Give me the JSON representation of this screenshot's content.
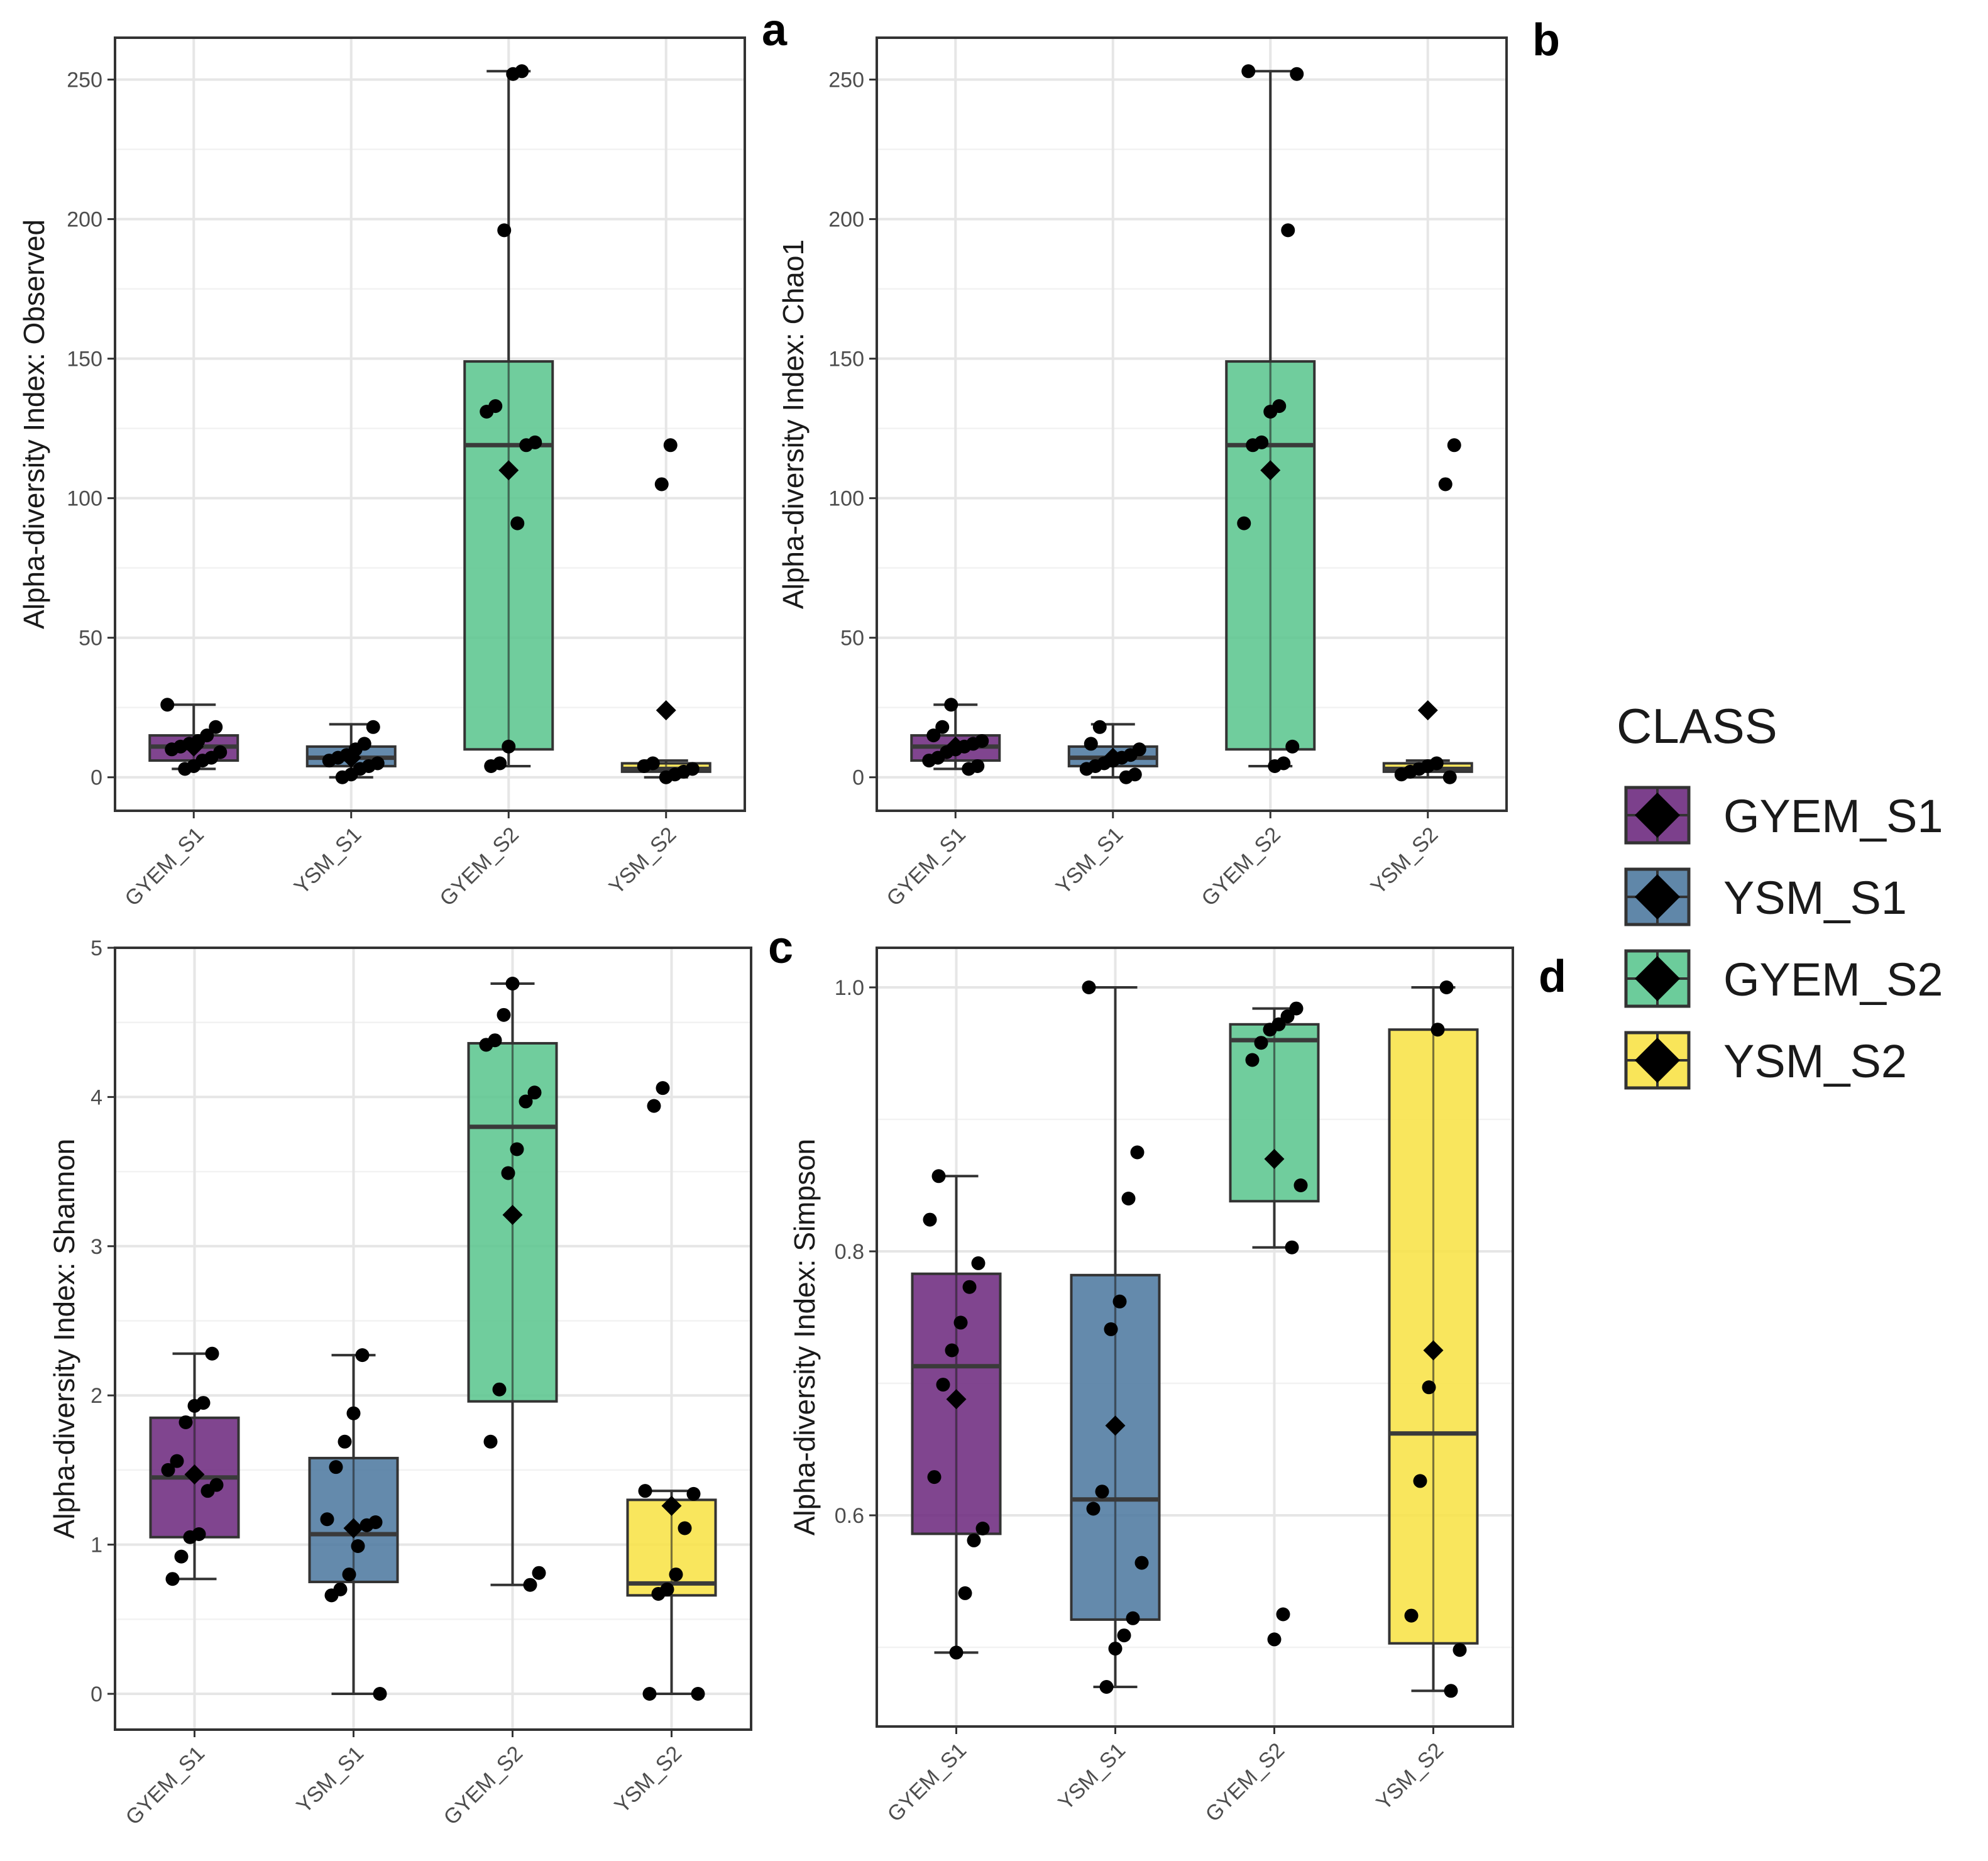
{
  "categories": [
    "GYEM_S1",
    "YSM_S1",
    "GYEM_S2",
    "YSM_S2"
  ],
  "colors": [
    "#6e2b80",
    "#4f7aa0",
    "#5cc690",
    "#f8e247"
  ],
  "legend": {
    "title": "CLASS",
    "items": [
      "GYEM_S1",
      "YSM_S1",
      "GYEM_S2",
      "YSM_S2"
    ]
  },
  "chart_data": [
    {
      "type": "box",
      "letter": "a",
      "ylabel": "Alpha-diversity Index: Observed",
      "ylim": [
        -12,
        265
      ],
      "yticks": [
        0,
        50,
        100,
        150,
        200,
        250
      ],
      "boxes": [
        {
          "q1": 6,
          "median": 11,
          "q3": 15,
          "lo": 3,
          "hi": 26,
          "mean": 11,
          "points": [
            26,
            18,
            15,
            13,
            12,
            11,
            10,
            9,
            7,
            6,
            4,
            3
          ]
        },
        {
          "q1": 4,
          "median": 7,
          "q3": 11,
          "lo": 0,
          "hi": 19,
          "mean": 7,
          "points": [
            18,
            12,
            10,
            8,
            7,
            6,
            5,
            4,
            3,
            1,
            0
          ]
        },
        {
          "q1": 10,
          "median": 119,
          "q3": 149,
          "lo": 4,
          "hi": 253,
          "mean": 110,
          "points": [
            253,
            252,
            196,
            133,
            131,
            120,
            119,
            91,
            11,
            5,
            4
          ]
        },
        {
          "q1": 2,
          "median": 3,
          "q3": 5,
          "lo": 0,
          "hi": 6,
          "mean": 24,
          "points": [
            119,
            105,
            5,
            4,
            3,
            2,
            1,
            0
          ]
        }
      ]
    },
    {
      "type": "box",
      "letter": "b",
      "ylabel": "Alpha-diversity Index: Chao1",
      "ylim": [
        -12,
        265
      ],
      "yticks": [
        0,
        50,
        100,
        150,
        200,
        250
      ],
      "boxes": [
        {
          "q1": 6,
          "median": 11,
          "q3": 15,
          "lo": 3,
          "hi": 26,
          "mean": 11,
          "points": [
            26,
            18,
            15,
            13,
            12,
            11,
            10,
            9,
            7,
            6,
            4,
            3
          ]
        },
        {
          "q1": 4,
          "median": 7,
          "q3": 11,
          "lo": 0,
          "hi": 19,
          "mean": 7,
          "points": [
            18,
            12,
            10,
            8,
            7,
            6,
            5,
            4,
            3,
            1,
            0
          ]
        },
        {
          "q1": 10,
          "median": 119,
          "q3": 149,
          "lo": 4,
          "hi": 253,
          "mean": 110,
          "points": [
            253,
            252,
            196,
            133,
            131,
            120,
            119,
            91,
            11,
            5,
            4
          ]
        },
        {
          "q1": 2,
          "median": 3,
          "q3": 5,
          "lo": 0,
          "hi": 6,
          "mean": 24,
          "points": [
            119,
            105,
            5,
            4,
            3,
            2,
            1,
            0
          ]
        }
      ]
    },
    {
      "type": "box",
      "letter": "c",
      "ylabel": "Alpha-diversity Index: Shannon",
      "ylim": [
        -0.24,
        5.0
      ],
      "yticks": [
        0,
        1,
        2,
        3,
        4,
        5
      ],
      "boxes": [
        {
          "q1": 1.05,
          "median": 1.45,
          "q3": 1.85,
          "lo": 0.77,
          "hi": 2.28,
          "mean": 1.47,
          "points": [
            2.28,
            1.95,
            1.93,
            1.82,
            1.56,
            1.5,
            1.4,
            1.36,
            1.07,
            1.05,
            0.92,
            0.77
          ]
        },
        {
          "q1": 0.75,
          "median": 1.07,
          "q3": 1.58,
          "lo": 0.0,
          "hi": 2.27,
          "mean": 1.11,
          "points": [
            2.27,
            1.88,
            1.69,
            1.52,
            1.17,
            1.15,
            1.13,
            0.99,
            0.8,
            0.7,
            0.66,
            0.0
          ]
        },
        {
          "q1": 1.96,
          "median": 3.8,
          "q3": 4.36,
          "lo": 0.73,
          "hi": 4.76,
          "mean": 3.21,
          "points": [
            4.76,
            4.55,
            4.38,
            4.35,
            4.03,
            3.97,
            3.65,
            3.49,
            2.04,
            1.69,
            0.81,
            0.73
          ]
        },
        {
          "q1": 0.66,
          "median": 0.74,
          "q3": 1.3,
          "lo": 0.0,
          "hi": 1.36,
          "mean": 1.26,
          "points": [
            4.06,
            3.94,
            1.36,
            1.34,
            1.11,
            0.8,
            0.7,
            0.67,
            0.0,
            0.0
          ]
        }
      ]
    },
    {
      "type": "box",
      "letter": "d",
      "ylabel": "Alpha-diversity Index: Simpson",
      "ylim": [
        0.44,
        1.03
      ],
      "yticks": [
        0.6,
        0.8,
        1.0
      ],
      "ytick_labels": [
        "0.6",
        "0.8",
        "1.0"
      ],
      "boxes": [
        {
          "q1": 0.586,
          "median": 0.713,
          "q3": 0.783,
          "lo": 0.496,
          "hi": 0.857,
          "mean": 0.688,
          "points": [
            0.857,
            0.824,
            0.791,
            0.773,
            0.746,
            0.725,
            0.699,
            0.629,
            0.59,
            0.581,
            0.541,
            0.496
          ]
        },
        {
          "q1": 0.521,
          "median": 0.612,
          "q3": 0.782,
          "lo": 0.47,
          "hi": 1.0,
          "mean": 0.668,
          "points": [
            1.0,
            0.875,
            0.84,
            0.762,
            0.741,
            0.618,
            0.605,
            0.564,
            0.522,
            0.509,
            0.499,
            0.47
          ]
        },
        {
          "q1": 0.838,
          "median": 0.96,
          "q3": 0.972,
          "lo": 0.803,
          "hi": 0.984,
          "mean": 0.87,
          "points": [
            0.984,
            0.978,
            0.972,
            0.968,
            0.958,
            0.945,
            0.85,
            0.803,
            0.525,
            0.506
          ]
        },
        {
          "q1": 0.503,
          "median": 0.662,
          "q3": 0.968,
          "lo": 0.467,
          "hi": 1.0,
          "mean": 0.725,
          "points": [
            1.0,
            0.968,
            0.697,
            0.626,
            0.524,
            0.498,
            0.467
          ]
        }
      ]
    }
  ]
}
